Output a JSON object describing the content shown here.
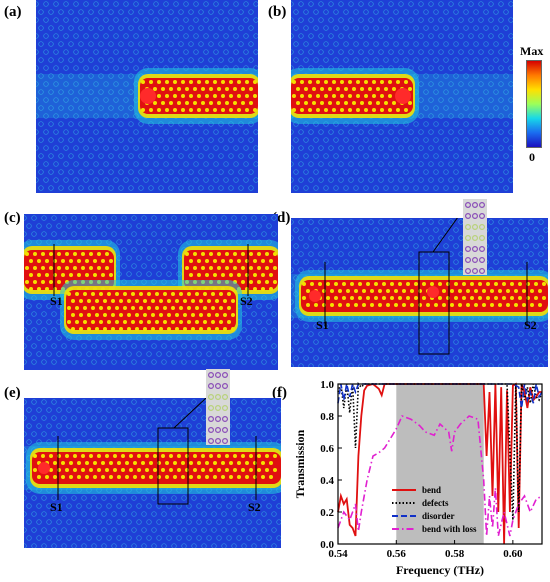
{
  "panels": {
    "a": "(a)",
    "b": "(b)",
    "c": "(c)",
    "d": "(d)",
    "e": "(e)",
    "f": "(f)"
  },
  "colorbar": {
    "max_label": "Max",
    "min_label": "0"
  },
  "sections": {
    "c_s1": "S1",
    "c_s2": "S2",
    "d_s1": "S1",
    "d_s2": "S2",
    "e_s1": "S1",
    "e_s2": "S2"
  },
  "colors": {
    "background_field": "#1f3fd6",
    "hot": "#e01010",
    "warm": "#f5e000",
    "cool": "#20c8e0",
    "band_gap": "#bdbdbd"
  },
  "chart_data": {
    "type": "line",
    "xlabel": "Frequency (THz)",
    "ylabel": "Transmission",
    "xlim": [
      0.54,
      0.61
    ],
    "ylim": [
      0.0,
      1.0
    ],
    "xticks": [
      "0.54",
      "0.56",
      "0.58",
      "0.60"
    ],
    "yticks": [
      "0.0",
      "0.2",
      "0.4",
      "0.6",
      "0.8",
      "1.0"
    ],
    "shaded_region": [
      0.56,
      0.59
    ],
    "legend_position": "bottom-left",
    "series": [
      {
        "name": "bend",
        "color": "#e01010",
        "style": "solid",
        "x": [
          0.54,
          0.541,
          0.542,
          0.543,
          0.544,
          0.545,
          0.546,
          0.547,
          0.548,
          0.549,
          0.55,
          0.552,
          0.554,
          0.555,
          0.556,
          0.557,
          0.558,
          0.59,
          0.591,
          0.592,
          0.593,
          0.594,
          0.595,
          0.596,
          0.597,
          0.598,
          0.599,
          0.6,
          0.601,
          0.602,
          0.603,
          0.604,
          0.605,
          0.606,
          0.607,
          0.608,
          0.609,
          0.61
        ],
        "y": [
          0.2,
          0.3,
          0.25,
          0.28,
          0.12,
          0.1,
          0.05,
          0.55,
          0.8,
          0.96,
          0.99,
          1.0,
          0.97,
          0.93,
          1.0,
          1.0,
          1.0,
          1.0,
          0.55,
          0.95,
          0.3,
          1.0,
          0.2,
          0.98,
          0.0,
          0.96,
          0.2,
          0.99,
          1.0,
          0.1,
          1.0,
          0.95,
          0.85,
          0.98,
          0.9,
          0.92,
          0.95,
          0.95
        ]
      },
      {
        "name": "defects",
        "color": "#000000",
        "style": "dotted",
        "x": [
          0.54,
          0.541,
          0.542,
          0.543,
          0.544,
          0.545,
          0.546,
          0.547,
          0.548,
          0.549,
          0.55,
          0.555,
          0.56,
          0.59,
          0.595,
          0.598,
          0.6,
          0.601,
          0.602,
          0.603,
          0.604,
          0.605,
          0.606,
          0.607,
          0.608,
          0.609,
          0.61
        ],
        "y": [
          0.95,
          1.0,
          0.85,
          1.0,
          0.82,
          1.0,
          0.6,
          1.0,
          0.98,
          1.0,
          1.0,
          1.0,
          1.0,
          1.0,
          1.0,
          1.0,
          0.15,
          1.0,
          0.2,
          1.0,
          0.9,
          0.98,
          0.88,
          1.0,
          0.92,
          0.9,
          0.95
        ]
      },
      {
        "name": "disorder",
        "color": "#1030c8",
        "style": "dashed",
        "x": [
          0.54,
          0.541,
          0.542,
          0.543,
          0.544,
          0.545,
          0.546,
          0.547,
          0.548,
          0.549,
          0.55,
          0.555,
          0.56,
          0.59,
          0.6,
          0.602,
          0.603,
          0.604,
          0.605,
          0.606,
          0.607,
          0.608,
          0.609,
          0.61
        ],
        "y": [
          0.88,
          1.0,
          0.9,
          1.0,
          0.92,
          1.0,
          0.95,
          1.0,
          1.0,
          1.0,
          1.0,
          1.0,
          1.0,
          1.0,
          1.0,
          0.98,
          0.85,
          1.0,
          0.9,
          0.95,
          0.88,
          1.0,
          0.92,
          0.95
        ]
      },
      {
        "name": "bend with loss",
        "color": "#e020d0",
        "style": "dashdot",
        "x": [
          0.54,
          0.542,
          0.544,
          0.546,
          0.547,
          0.548,
          0.55,
          0.552,
          0.554,
          0.556,
          0.558,
          0.56,
          0.562,
          0.565,
          0.568,
          0.57,
          0.573,
          0.575,
          0.578,
          0.579,
          0.58,
          0.582,
          0.585,
          0.588,
          0.59,
          0.591,
          0.592,
          0.593,
          0.594,
          0.595,
          0.597,
          0.599,
          0.6,
          0.602,
          0.604,
          0.606,
          0.608,
          0.61
        ],
        "y": [
          0.1,
          0.2,
          0.15,
          0.25,
          0.08,
          0.2,
          0.4,
          0.55,
          0.57,
          0.6,
          0.66,
          0.72,
          0.8,
          0.78,
          0.74,
          0.7,
          0.68,
          0.75,
          0.7,
          0.58,
          0.7,
          0.75,
          0.8,
          0.78,
          0.4,
          0.05,
          0.3,
          0.1,
          0.35,
          0.05,
          0.2,
          0.05,
          0.15,
          0.25,
          0.3,
          0.2,
          0.28,
          0.3
        ]
      }
    ]
  }
}
